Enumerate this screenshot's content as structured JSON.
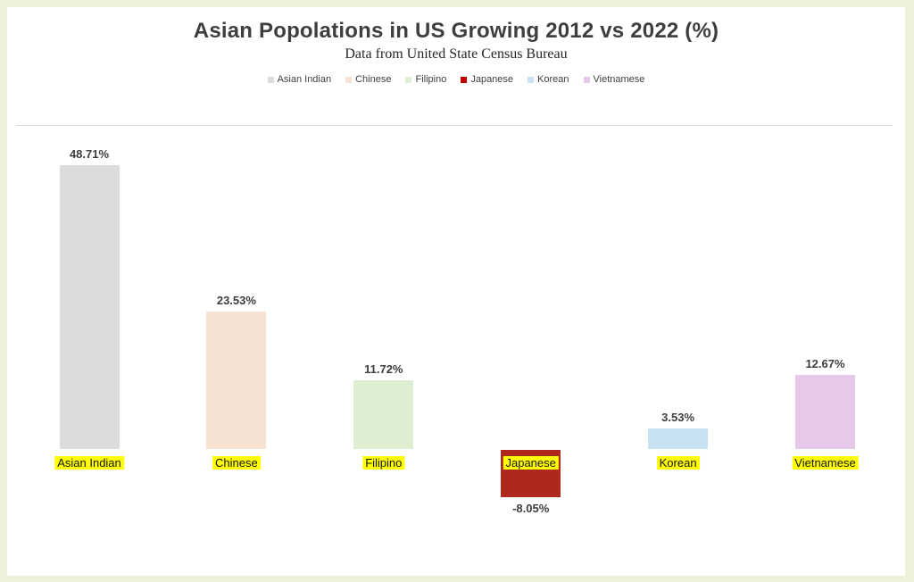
{
  "page": {
    "background_color": "#edf2db",
    "card_color": "#ffffff"
  },
  "chart_data": {
    "type": "bar",
    "title": "Asian Popolations in US Growing 2012 vs 2022 (%)",
    "subtitle": "Data from United State Census Bureau",
    "categories": [
      "Asian Indian",
      "Chinese",
      "Filipino",
      "Japanese",
      "Korean",
      "Vietnamese"
    ],
    "values": [
      48.71,
      23.53,
      11.72,
      -8.05,
      3.53,
      12.67
    ],
    "value_labels": [
      "48.71%",
      "23.53%",
      "11.72%",
      "-8.05%",
      "3.53%",
      "12.67%"
    ],
    "bar_colors": [
      "#dcdcdc",
      "#f5e2d2",
      "#ddeed2",
      "#ae281e",
      "#c9e2f1",
      "#e6c9e8"
    ],
    "legend": [
      {
        "label": "Asian Indian",
        "color": "#dcdcdc"
      },
      {
        "label": "Chinese",
        "color": "#f5e2d2"
      },
      {
        "label": "Filipino",
        "color": "#ddeed2"
      },
      {
        "label": "Japanese",
        "color": "#c00000"
      },
      {
        "label": "Korean",
        "color": "#c9e2f1"
      },
      {
        "label": "Vietnamese",
        "color": "#e6c9e8"
      }
    ],
    "legend_position": "top",
    "grid": false,
    "xlabel": "",
    "ylabel": "",
    "ylim": [
      -10,
      55
    ],
    "axis_line_color": "#d9d9d9",
    "value_label_color": "#3d3d3d",
    "category_label_highlight": "#ffff00"
  }
}
